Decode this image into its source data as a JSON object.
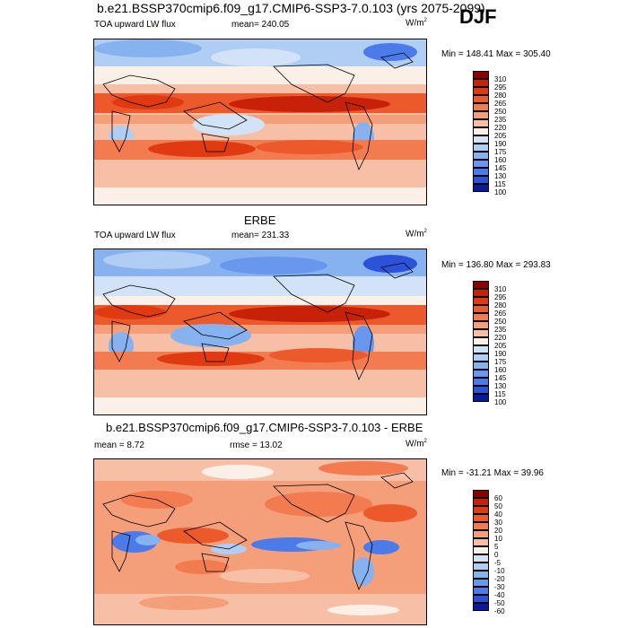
{
  "header": {
    "title": "b.e21.BSSP370cmip6.f09_g17.CMIP6-SSP3-7.0.103 (yrs 2075-2099)",
    "season": "DJF"
  },
  "panels": [
    {
      "title": "",
      "variable": "TOA upward LW flux",
      "stat": "mean= 240.05",
      "units": "W/m",
      "units_sup": "2",
      "minmax": "Min = 148.41 Max = 305.40",
      "colorbar_levels": [
        "310",
        "295",
        "280",
        "265",
        "250",
        "235",
        "220",
        "205",
        "190",
        "175",
        "160",
        "145",
        "130",
        "115",
        "100"
      ],
      "colorbar_colors": [
        "#8b0000",
        "#c8210a",
        "#e03a12",
        "#ec5a2c",
        "#f27b4f",
        "#f59e7a",
        "#f7c0a6",
        "#faf0e8",
        "#d2e3f7",
        "#b0cdf4",
        "#87b2f0",
        "#6a97ee",
        "#4a7be9",
        "#2c52d8",
        "#0a1a9e"
      ]
    },
    {
      "title": "ERBE",
      "variable": "TOA upward LW flux",
      "stat": "mean= 231.33",
      "units": "W/m",
      "units_sup": "2",
      "minmax": "Min = 136.80 Max = 293.83",
      "colorbar_levels": [
        "310",
        "295",
        "280",
        "265",
        "250",
        "235",
        "220",
        "205",
        "190",
        "175",
        "160",
        "145",
        "130",
        "115",
        "100"
      ],
      "colorbar_colors": [
        "#8b0000",
        "#c8210a",
        "#e03a12",
        "#ec5a2c",
        "#f27b4f",
        "#f59e7a",
        "#f7c0a6",
        "#faf0e8",
        "#d2e3f7",
        "#b0cdf4",
        "#87b2f0",
        "#6a97ee",
        "#4a7be9",
        "#2c52d8",
        "#0a1a9e"
      ]
    },
    {
      "title": "b.e21.BSSP370cmip6.f09_g17.CMIP6-SSP3-7.0.103 - ERBE",
      "variable": "",
      "stat_left": "mean =   8.72",
      "stat": "rmse =  13.02",
      "units": "W/m",
      "units_sup": "2",
      "minmax": "Min = -31.21 Max =  39.96",
      "colorbar_levels": [
        "60",
        "50",
        "40",
        "30",
        "20",
        "10",
        "5",
        "0",
        "-5",
        "-10",
        "-20",
        "-30",
        "-40",
        "-50",
        "-60"
      ],
      "colorbar_colors": [
        "#8b0000",
        "#c8210a",
        "#e03a12",
        "#ec5a2c",
        "#f27b4f",
        "#f59e7a",
        "#f7c0a6",
        "#faf0e8",
        "#d2e3f7",
        "#b0cdf4",
        "#87b2f0",
        "#6a97ee",
        "#4a7be9",
        "#2c52d8",
        "#0a1a9e"
      ]
    }
  ]
}
